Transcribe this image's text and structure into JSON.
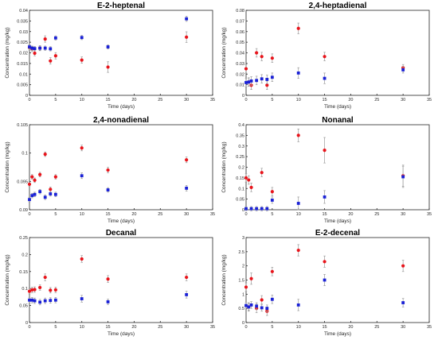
{
  "figure": {
    "colors": {
      "series_a": "#e8141b",
      "series_b": "#1a21d6",
      "errorbar": "#9a9a9a"
    }
  },
  "chart_data": [
    {
      "type": "scatter",
      "title": "E-2-heptenal",
      "xlabel": "Time (days)",
      "ylabel": "Concentration (mg/kg)",
      "xlim": [
        0,
        35
      ],
      "ylim": [
        0,
        0.04
      ],
      "xticks": [
        "0",
        "5",
        "10",
        "15",
        "20",
        "25",
        "30",
        "35"
      ],
      "yticks": [
        "0",
        "0.005",
        "0.01",
        "0.015",
        "0.02",
        "0.025",
        "0.03",
        "0.035",
        "0.04"
      ],
      "series": [
        {
          "color": "#e8141b",
          "points": [
            {
              "x": 0,
              "y": 0.0225,
              "err": 0.0012
            },
            {
              "x": 0.5,
              "y": 0.0218,
              "err": 0.0012
            },
            {
              "x": 1,
              "y": 0.0198,
              "err": 0.0012
            },
            {
              "x": 2,
              "y": 0.0222,
              "err": 0.0012
            },
            {
              "x": 3,
              "y": 0.0265,
              "err": 0.0015
            },
            {
              "x": 4,
              "y": 0.0162,
              "err": 0.0015
            },
            {
              "x": 5,
              "y": 0.0186,
              "err": 0.0015
            },
            {
              "x": 10,
              "y": 0.0166,
              "err": 0.0015
            },
            {
              "x": 15,
              "y": 0.0133,
              "err": 0.0025
            },
            {
              "x": 30,
              "y": 0.0274,
              "err": 0.0025
            }
          ]
        },
        {
          "color": "#1a21d6",
          "points": [
            {
              "x": 0,
              "y": 0.0228,
              "err": 0.001
            },
            {
              "x": 0.5,
              "y": 0.0222,
              "err": 0.001
            },
            {
              "x": 1,
              "y": 0.022,
              "err": 0.001
            },
            {
              "x": 2,
              "y": 0.0222,
              "err": 0.001
            },
            {
              "x": 3,
              "y": 0.0222,
              "err": 0.001
            },
            {
              "x": 4,
              "y": 0.0219,
              "err": 0.001
            },
            {
              "x": 5,
              "y": 0.027,
              "err": 0.001
            },
            {
              "x": 10,
              "y": 0.0272,
              "err": 0.001
            },
            {
              "x": 15,
              "y": 0.0228,
              "err": 0.001
            },
            {
              "x": 30,
              "y": 0.036,
              "err": 0.0012
            }
          ]
        }
      ]
    },
    {
      "type": "scatter",
      "title": "2,4-heptadienal",
      "xlabel": "Time (days)",
      "ylabel": "Concentration (mg/kg)",
      "xlim": [
        0,
        35
      ],
      "ylim": [
        0,
        0.08
      ],
      "xticks": [
        "0",
        "5",
        "10",
        "15",
        "20",
        "25",
        "30",
        "35"
      ],
      "yticks": [
        "0",
        "0.01",
        "0.02",
        "0.03",
        "0.04",
        "0.05",
        "0.06",
        "0.07",
        "0.08"
      ],
      "series": [
        {
          "color": "#e8141b",
          "points": [
            {
              "x": 0,
              "y": 0.025,
              "err": 0.004
            },
            {
              "x": 0.5,
              "y": 0.0125,
              "err": 0.004
            },
            {
              "x": 1,
              "y": 0.0095,
              "err": 0.004
            },
            {
              "x": 2,
              "y": 0.04,
              "err": 0.004
            },
            {
              "x": 3,
              "y": 0.0365,
              "err": 0.004
            },
            {
              "x": 4,
              "y": 0.0095,
              "err": 0.004
            },
            {
              "x": 5,
              "y": 0.035,
              "err": 0.004
            },
            {
              "x": 10,
              "y": 0.063,
              "err": 0.005
            },
            {
              "x": 15,
              "y": 0.0365,
              "err": 0.004
            },
            {
              "x": 30,
              "y": 0.026,
              "err": 0.003
            }
          ]
        },
        {
          "color": "#1a21d6",
          "points": [
            {
              "x": 0,
              "y": 0.012,
              "err": 0.004
            },
            {
              "x": 0.5,
              "y": 0.0125,
              "err": 0.004
            },
            {
              "x": 1,
              "y": 0.0135,
              "err": 0.004
            },
            {
              "x": 2,
              "y": 0.014,
              "err": 0.004
            },
            {
              "x": 3,
              "y": 0.0155,
              "err": 0.004
            },
            {
              "x": 4,
              "y": 0.015,
              "err": 0.004
            },
            {
              "x": 5,
              "y": 0.017,
              "err": 0.004
            },
            {
              "x": 10,
              "y": 0.021,
              "err": 0.005
            },
            {
              "x": 15,
              "y": 0.016,
              "err": 0.005
            },
            {
              "x": 30,
              "y": 0.024,
              "err": 0.003
            }
          ]
        }
      ]
    },
    {
      "type": "scatter",
      "title": "2,4-nonadienal",
      "xlabel": "Time (days)",
      "ylabel": "Concentration (mg/kg)",
      "xlim": [
        0,
        35
      ],
      "ylim": [
        0.09,
        0.105
      ],
      "xticks": [
        "0",
        "5",
        "10",
        "15",
        "20",
        "25",
        "30",
        "35"
      ],
      "yticks": [
        "0.09",
        "0.095",
        "0.1",
        "0.105"
      ],
      "series": [
        {
          "color": "#e8141b",
          "points": [
            {
              "x": 0,
              "y": 0.0945,
              "err": 0.0004
            },
            {
              "x": 0.5,
              "y": 0.0958,
              "err": 0.0004
            },
            {
              "x": 1,
              "y": 0.0952,
              "err": 0.0004
            },
            {
              "x": 2,
              "y": 0.0962,
              "err": 0.0004
            },
            {
              "x": 3,
              "y": 0.0998,
              "err": 0.0004
            },
            {
              "x": 4,
              "y": 0.0936,
              "err": 0.0004
            },
            {
              "x": 5,
              "y": 0.0958,
              "err": 0.0004
            },
            {
              "x": 10,
              "y": 0.1009,
              "err": 0.0005
            },
            {
              "x": 15,
              "y": 0.097,
              "err": 0.0005
            },
            {
              "x": 30,
              "y": 0.0988,
              "err": 0.0005
            }
          ]
        },
        {
          "color": "#1a21d6",
          "points": [
            {
              "x": 0,
              "y": 0.0918,
              "err": 0.0004
            },
            {
              "x": 0.5,
              "y": 0.0925,
              "err": 0.0004
            },
            {
              "x": 1,
              "y": 0.0927,
              "err": 0.0004
            },
            {
              "x": 2,
              "y": 0.0932,
              "err": 0.0004
            },
            {
              "x": 3,
              "y": 0.0922,
              "err": 0.0004
            },
            {
              "x": 4,
              "y": 0.0928,
              "err": 0.0004
            },
            {
              "x": 5,
              "y": 0.0927,
              "err": 0.0004
            },
            {
              "x": 10,
              "y": 0.096,
              "err": 0.0005
            },
            {
              "x": 15,
              "y": 0.0935,
              "err": 0.0004
            },
            {
              "x": 30,
              "y": 0.0938,
              "err": 0.0005
            }
          ]
        }
      ]
    },
    {
      "type": "scatter",
      "title": "Nonanal",
      "xlabel": "Time (days)",
      "ylabel": "Concentration (mg/kg)",
      "xlim": [
        0,
        35
      ],
      "ylim": [
        0,
        0.4
      ],
      "xticks": [
        "0",
        "5",
        "10",
        "15",
        "20",
        "25",
        "30",
        "35"
      ],
      "yticks": [
        "0",
        "0.05",
        "0.1",
        "0.15",
        "0.2",
        "0.25",
        "0.3",
        "0.35",
        "0.4"
      ],
      "series": [
        {
          "color": "#e8141b",
          "points": [
            {
              "x": 0,
              "y": 0.15,
              "err": 0.02
            },
            {
              "x": 0.5,
              "y": 0.14,
              "err": 0.02
            },
            {
              "x": 1,
              "y": 0.105,
              "err": 0.02
            },
            {
              "x": 3,
              "y": 0.175,
              "err": 0.02
            },
            {
              "x": 5,
              "y": 0.085,
              "err": 0.02
            },
            {
              "x": 10,
              "y": 0.35,
              "err": 0.03
            },
            {
              "x": 15,
              "y": 0.28,
              "err": 0.06
            },
            {
              "x": 30,
              "y": 0.16,
              "err": 0.05
            }
          ]
        },
        {
          "color": "#1a21d6",
          "points": [
            {
              "x": 0,
              "y": 0.005,
              "err": 0.01
            },
            {
              "x": 1,
              "y": 0.005,
              "err": 0.01
            },
            {
              "x": 2,
              "y": 0.005,
              "err": 0.01
            },
            {
              "x": 3,
              "y": 0.005,
              "err": 0.01
            },
            {
              "x": 4,
              "y": 0.005,
              "err": 0.01
            },
            {
              "x": 5,
              "y": 0.045,
              "err": 0.015
            },
            {
              "x": 10,
              "y": 0.03,
              "err": 0.03
            },
            {
              "x": 15,
              "y": 0.06,
              "err": 0.03
            },
            {
              "x": 30,
              "y": 0.155,
              "err": 0.05
            }
          ]
        }
      ]
    },
    {
      "type": "scatter",
      "title": "Decanal",
      "xlabel": "Time (days)",
      "ylabel": "Concentration (mg/kg)",
      "xlim": [
        0,
        35
      ],
      "ylim": [
        0,
        0.25
      ],
      "xticks": [
        "0",
        "5",
        "10",
        "15",
        "20",
        "25",
        "30",
        "35"
      ],
      "yticks": [
        "0",
        "0.05",
        "0.1",
        "0.15",
        "0.2",
        "0.25"
      ],
      "series": [
        {
          "color": "#e8141b",
          "points": [
            {
              "x": 0,
              "y": 0.092,
              "err": 0.008
            },
            {
              "x": 0.5,
              "y": 0.096,
              "err": 0.008
            },
            {
              "x": 1,
              "y": 0.097,
              "err": 0.008
            },
            {
              "x": 2,
              "y": 0.103,
              "err": 0.008
            },
            {
              "x": 3,
              "y": 0.133,
              "err": 0.01
            },
            {
              "x": 4,
              "y": 0.095,
              "err": 0.008
            },
            {
              "x": 5,
              "y": 0.096,
              "err": 0.008
            },
            {
              "x": 10,
              "y": 0.187,
              "err": 0.01
            },
            {
              "x": 15,
              "y": 0.128,
              "err": 0.01
            },
            {
              "x": 30,
              "y": 0.133,
              "err": 0.01
            }
          ]
        },
        {
          "color": "#1a21d6",
          "points": [
            {
              "x": 0,
              "y": 0.066,
              "err": 0.008
            },
            {
              "x": 0.5,
              "y": 0.066,
              "err": 0.008
            },
            {
              "x": 1,
              "y": 0.064,
              "err": 0.008
            },
            {
              "x": 2,
              "y": 0.06,
              "err": 0.008
            },
            {
              "x": 3,
              "y": 0.064,
              "err": 0.008
            },
            {
              "x": 4,
              "y": 0.065,
              "err": 0.008
            },
            {
              "x": 5,
              "y": 0.066,
              "err": 0.008
            },
            {
              "x": 10,
              "y": 0.07,
              "err": 0.01
            },
            {
              "x": 15,
              "y": 0.061,
              "err": 0.008
            },
            {
              "x": 30,
              "y": 0.082,
              "err": 0.01
            }
          ]
        }
      ]
    },
    {
      "type": "scatter",
      "title": "E-2-decenal",
      "xlabel": "Time (days)",
      "ylabel": "Concentration (mg/kg)",
      "xlim": [
        0,
        35
      ],
      "ylim": [
        0,
        3
      ],
      "xticks": [
        "0",
        "5",
        "10",
        "15",
        "20",
        "25",
        "30",
        "35"
      ],
      "yticks": [
        "0",
        "0.5",
        "1",
        "1.5",
        "2",
        "2.5",
        "3"
      ],
      "series": [
        {
          "color": "#e8141b",
          "points": [
            {
              "x": 0,
              "y": 1.25,
              "err": 0.15
            },
            {
              "x": 0.5,
              "y": 0.55,
              "err": 0.15
            },
            {
              "x": 1,
              "y": 1.55,
              "err": 0.2
            },
            {
              "x": 2,
              "y": 0.5,
              "err": 0.15
            },
            {
              "x": 3,
              "y": 0.8,
              "err": 0.15
            },
            {
              "x": 4,
              "y": 0.4,
              "err": 0.15
            },
            {
              "x": 5,
              "y": 1.8,
              "err": 0.15
            },
            {
              "x": 10,
              "y": 2.55,
              "err": 0.2
            },
            {
              "x": 15,
              "y": 2.15,
              "err": 0.2
            },
            {
              "x": 30,
              "y": 2.0,
              "err": 0.2
            }
          ]
        },
        {
          "color": "#1a21d6",
          "points": [
            {
              "x": 0,
              "y": 0.6,
              "err": 0.12
            },
            {
              "x": 0.5,
              "y": 0.55,
              "err": 0.12
            },
            {
              "x": 1,
              "y": 0.62,
              "err": 0.12
            },
            {
              "x": 2,
              "y": 0.58,
              "err": 0.12
            },
            {
              "x": 3,
              "y": 0.52,
              "err": 0.12
            },
            {
              "x": 4,
              "y": 0.5,
              "err": 0.12
            },
            {
              "x": 5,
              "y": 0.82,
              "err": 0.15
            },
            {
              "x": 10,
              "y": 0.62,
              "err": 0.2
            },
            {
              "x": 15,
              "y": 1.5,
              "err": 0.2
            },
            {
              "x": 30,
              "y": 0.7,
              "err": 0.15
            }
          ]
        }
      ]
    }
  ]
}
